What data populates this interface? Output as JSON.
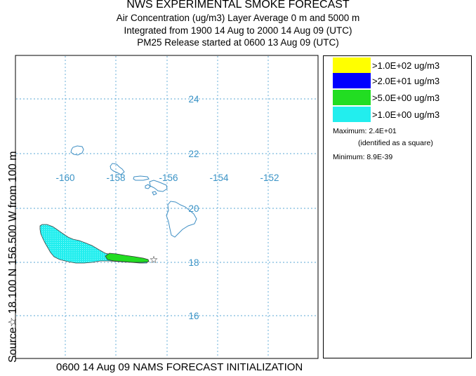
{
  "title": {
    "line1": "NWS EXPERIMENTAL SMOKE FORECAST",
    "line2": "Air Concentration (ug/m3) Layer Average    0 m and  5000 m",
    "line3": "Integrated from 1900 14 Aug to 2000 14 Aug 09 (UTC)",
    "line4": "PM25 Release started at 0600 13 Aug 09 (UTC)"
  },
  "side_label": "Source☆ 18.100  N 156.500  W     from  100 m",
  "bottom_label": "0600 14 Aug 09 NAMS FORECAST INITIALIZATION",
  "map": {
    "longitude_labels": [
      "-160",
      "-158",
      "-156",
      "-154",
      "-152"
    ],
    "latitude_labels": [
      "24",
      "22",
      "20",
      "18",
      "16"
    ],
    "source_marker": "☆",
    "colors": {
      "grid": "#5aa7d6",
      "coastline": "#3f8fc4",
      "plume_high": "#22dd22",
      "plume_low": "#22eeee"
    }
  },
  "legend": {
    "items": [
      {
        "label": ">1.0E+02 ug/m3",
        "color": "#ffff00"
      },
      {
        "label": ">2.0E+01 ug/m3",
        "color": "#0000ff"
      },
      {
        "label": ">5.0E+00 ug/m3",
        "color": "#22dd22"
      },
      {
        "label": ">1.0E+00 ug/m3",
        "color": "#22eeee"
      }
    ],
    "maximum": "Maximum: 2.4E+01",
    "maximum_note": "(identified as a square)",
    "minimum": "Minimum: 8.9E-39"
  }
}
